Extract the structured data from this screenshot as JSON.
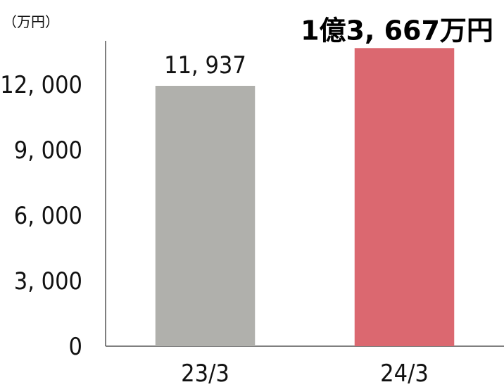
{
  "chart_data": {
    "type": "bar",
    "unit_label": "（万円）",
    "categories": [
      "23/3",
      "24/3"
    ],
    "values": [
      11937,
      13667
    ],
    "value_labels": [
      "11, 937",
      "1億3, 667万円"
    ],
    "bar_colors": [
      "#b0b0ac",
      "#db6870"
    ],
    "highlight_index": 1,
    "yticks": [
      0,
      3000,
      6000,
      9000,
      12000
    ],
    "ytick_labels": [
      "0",
      "3, 000",
      "6, 000",
      "9, 000",
      "12, 000"
    ],
    "ylim": [
      0,
      14000
    ],
    "grid": false,
    "legend": "none"
  }
}
